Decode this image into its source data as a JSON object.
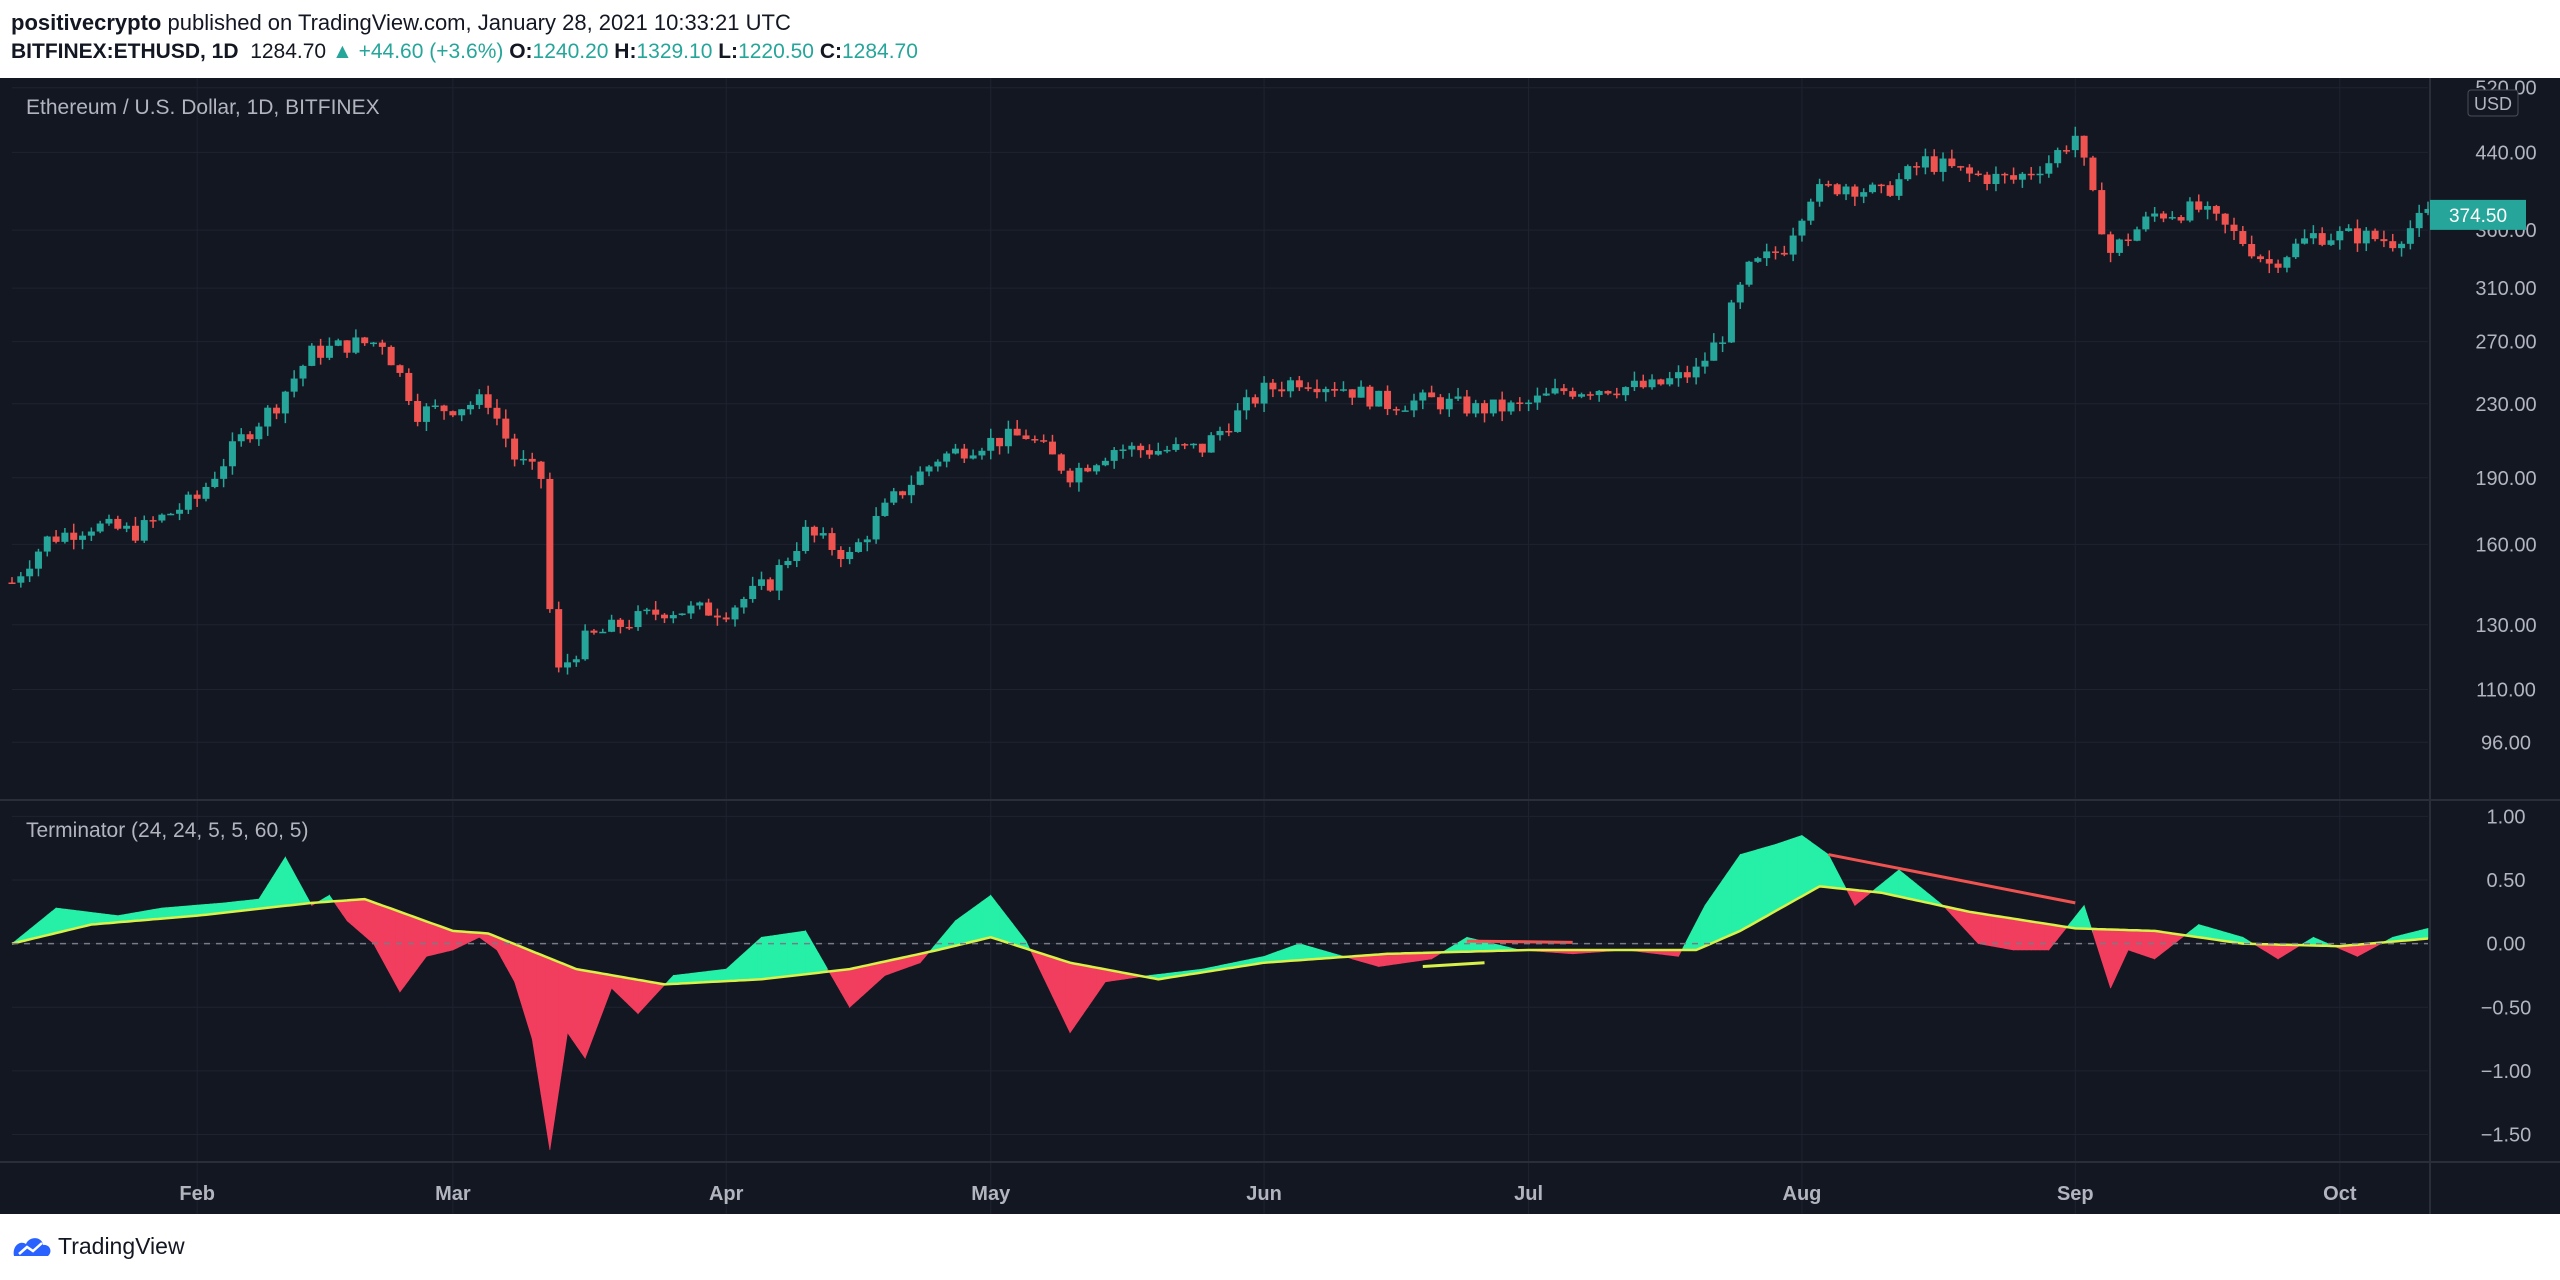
{
  "header": {
    "publisher": "positivecrypto",
    "published_text": "published on TradingView.com, January 28, 2021 10:33:21 UTC",
    "symbol": "BITFINEX:ETHUSD, 1D",
    "last": "1284.70",
    "change": "+44.60 (+3.6%)",
    "o_label": "O:",
    "o_value": "1240.20",
    "h_label": "H:",
    "h_value": "1329.10",
    "l_label": "L:",
    "l_value": "1220.50",
    "c_label": "C:",
    "c_value": "1284.70"
  },
  "footer": {
    "brand": "TradingView"
  },
  "colors": {
    "background": "#131722",
    "up": "#26a69a",
    "down": "#ef5350",
    "fill_up": "#26f0a8",
    "fill_down": "#f23e5e",
    "signal": "#d8f048"
  },
  "chart_data": [
    {
      "type": "candlestick",
      "title": "Ethereum / U.S. Dollar, 1D, BITFINEX",
      "currency": "USD",
      "scale": "log",
      "ylim": [
        84,
        525
      ],
      "y_ticks": [
        "520.00",
        "440.00",
        "360.00",
        "310.00",
        "270.00",
        "230.00",
        "190.00",
        "160.00",
        "130.00",
        "110.00",
        "96.00"
      ],
      "x_ticks": [
        "Feb",
        "Mar",
        "Apr",
        "May",
        "Jun",
        "Jul",
        "Aug",
        "Sep",
        "Oct"
      ],
      "x_range": [
        "2020-01-11",
        "2020-10-11"
      ],
      "last_price_label": "374.50",
      "close_series": {
        "dates": [
          "2020-01-11",
          "2020-01-15",
          "2020-01-20",
          "2020-01-25",
          "2020-02-01",
          "2020-02-06",
          "2020-02-10",
          "2020-02-14",
          "2020-02-18",
          "2020-02-22",
          "2020-02-26",
          "2020-03-01",
          "2020-03-05",
          "2020-03-08",
          "2020-03-11",
          "2020-03-12",
          "2020-03-13",
          "2020-03-16",
          "2020-03-20",
          "2020-03-25",
          "2020-04-01",
          "2020-04-06",
          "2020-04-10",
          "2020-04-15",
          "2020-04-20",
          "2020-04-25",
          "2020-04-30",
          "2020-05-05",
          "2020-05-10",
          "2020-05-15",
          "2020-05-20",
          "2020-05-25",
          "2020-06-01",
          "2020-06-05",
          "2020-06-10",
          "2020-06-15",
          "2020-06-20",
          "2020-06-25",
          "2020-06-30",
          "2020-07-05",
          "2020-07-10",
          "2020-07-15",
          "2020-07-20",
          "2020-07-23",
          "2020-07-26",
          "2020-07-30",
          "2020-08-02",
          "2020-08-06",
          "2020-08-10",
          "2020-08-15",
          "2020-08-20",
          "2020-08-25",
          "2020-08-29",
          "2020-09-01",
          "2020-09-03",
          "2020-09-05",
          "2020-09-10",
          "2020-09-15",
          "2020-09-20",
          "2020-09-23",
          "2020-09-28",
          "2020-10-03",
          "2020-10-07",
          "2020-10-11"
        ],
        "values": [
          145,
          162,
          168,
          165,
          180,
          210,
          230,
          262,
          268,
          270,
          225,
          228,
          232,
          200,
          190,
          135,
          115,
          125,
          130,
          135,
          135,
          145,
          165,
          155,
          180,
          200,
          208,
          212,
          192,
          205,
          204,
          205,
          238,
          245,
          240,
          230,
          232,
          227,
          228,
          238,
          240,
          240,
          250,
          275,
          325,
          345,
          395,
          405,
          395,
          430,
          415,
          410,
          430,
          460,
          390,
          340,
          375,
          380,
          350,
          330,
          355,
          355,
          350,
          374.5
        ]
      }
    },
    {
      "type": "area",
      "title": "Terminator (24, 24, 5, 5, 60, 5)",
      "ylim": [
        -1.7,
        1.05
      ],
      "y_ticks": [
        "1.00",
        "0.50",
        "0.00",
        "−0.50",
        "−1.00",
        "−1.50"
      ],
      "x_range": [
        "2020-01-11",
        "2020-10-11"
      ],
      "main": {
        "dates": [
          "2020-01-11",
          "2020-01-16",
          "2020-01-23",
          "2020-01-28",
          "2020-02-04",
          "2020-02-08",
          "2020-02-11",
          "2020-02-14",
          "2020-02-16",
          "2020-02-18",
          "2020-02-21",
          "2020-02-24",
          "2020-02-27",
          "2020-03-01",
          "2020-03-04",
          "2020-03-06",
          "2020-03-08",
          "2020-03-10",
          "2020-03-12",
          "2020-03-14",
          "2020-03-16",
          "2020-03-19",
          "2020-03-22",
          "2020-03-26",
          "2020-04-01",
          "2020-04-05",
          "2020-04-10",
          "2020-04-15",
          "2020-04-19",
          "2020-04-23",
          "2020-04-27",
          "2020-05-01",
          "2020-05-05",
          "2020-05-10",
          "2020-05-14",
          "2020-05-19",
          "2020-05-25",
          "2020-06-01",
          "2020-06-05",
          "2020-06-10",
          "2020-06-14",
          "2020-06-20",
          "2020-06-24",
          "2020-06-30",
          "2020-07-06",
          "2020-07-12",
          "2020-07-18",
          "2020-07-21",
          "2020-07-25",
          "2020-07-29",
          "2020-08-01",
          "2020-08-04",
          "2020-08-07",
          "2020-08-12",
          "2020-08-17",
          "2020-08-21",
          "2020-08-25",
          "2020-08-29",
          "2020-09-02",
          "2020-09-05",
          "2020-09-07",
          "2020-09-10",
          "2020-09-15",
          "2020-09-20",
          "2020-09-24",
          "2020-09-28",
          "2020-10-03",
          "2020-10-07",
          "2020-10-11"
        ],
        "values": [
          0.0,
          0.28,
          0.22,
          0.28,
          0.32,
          0.35,
          0.68,
          0.3,
          0.38,
          0.18,
          0.0,
          -0.38,
          -0.1,
          -0.05,
          0.05,
          -0.05,
          -0.3,
          -0.75,
          -1.62,
          -0.7,
          -0.9,
          -0.35,
          -0.55,
          -0.25,
          -0.2,
          0.05,
          0.1,
          -0.5,
          -0.25,
          -0.15,
          0.18,
          0.38,
          0.02,
          -0.7,
          -0.3,
          -0.25,
          -0.2,
          -0.1,
          0.0,
          -0.1,
          -0.18,
          -0.12,
          0.05,
          -0.05,
          -0.08,
          -0.05,
          -0.1,
          0.3,
          0.7,
          0.78,
          0.85,
          0.7,
          0.3,
          0.58,
          0.3,
          0.0,
          -0.05,
          -0.05,
          0.3,
          -0.35,
          -0.05,
          -0.12,
          0.15,
          0.05,
          -0.12,
          0.05,
          -0.1,
          0.05,
          0.12
        ]
      },
      "signal": {
        "dates": [
          "2020-01-11",
          "2020-01-20",
          "2020-02-01",
          "2020-02-14",
          "2020-02-20",
          "2020-03-01",
          "2020-03-05",
          "2020-03-15",
          "2020-03-25",
          "2020-04-05",
          "2020-04-15",
          "2020-04-25",
          "2020-05-01",
          "2020-05-10",
          "2020-05-20",
          "2020-06-01",
          "2020-06-15",
          "2020-07-01",
          "2020-07-20",
          "2020-07-25",
          "2020-08-03",
          "2020-08-10",
          "2020-08-20",
          "2020-09-01",
          "2020-09-10",
          "2020-09-20",
          "2020-10-01",
          "2020-10-11"
        ],
        "values": [
          0.0,
          0.15,
          0.22,
          0.32,
          0.35,
          0.1,
          0.08,
          -0.2,
          -0.32,
          -0.28,
          -0.2,
          -0.05,
          0.05,
          -0.15,
          -0.28,
          -0.15,
          -0.08,
          -0.05,
          -0.05,
          0.1,
          0.45,
          0.4,
          0.25,
          0.12,
          0.1,
          0.0,
          -0.02,
          0.04
        ]
      },
      "divergence_lines": [
        {
          "color": "down",
          "from": [
            "2020-08-04",
            0.7
          ],
          "to": [
            "2020-09-01",
            0.32
          ]
        },
        {
          "color": "down",
          "from": [
            "2020-06-24",
            0.02
          ],
          "to": [
            "2020-07-06",
            0.01
          ]
        },
        {
          "color": "signal",
          "from": [
            "2020-06-19",
            -0.18
          ],
          "to": [
            "2020-06-26",
            -0.15
          ]
        }
      ]
    }
  ]
}
